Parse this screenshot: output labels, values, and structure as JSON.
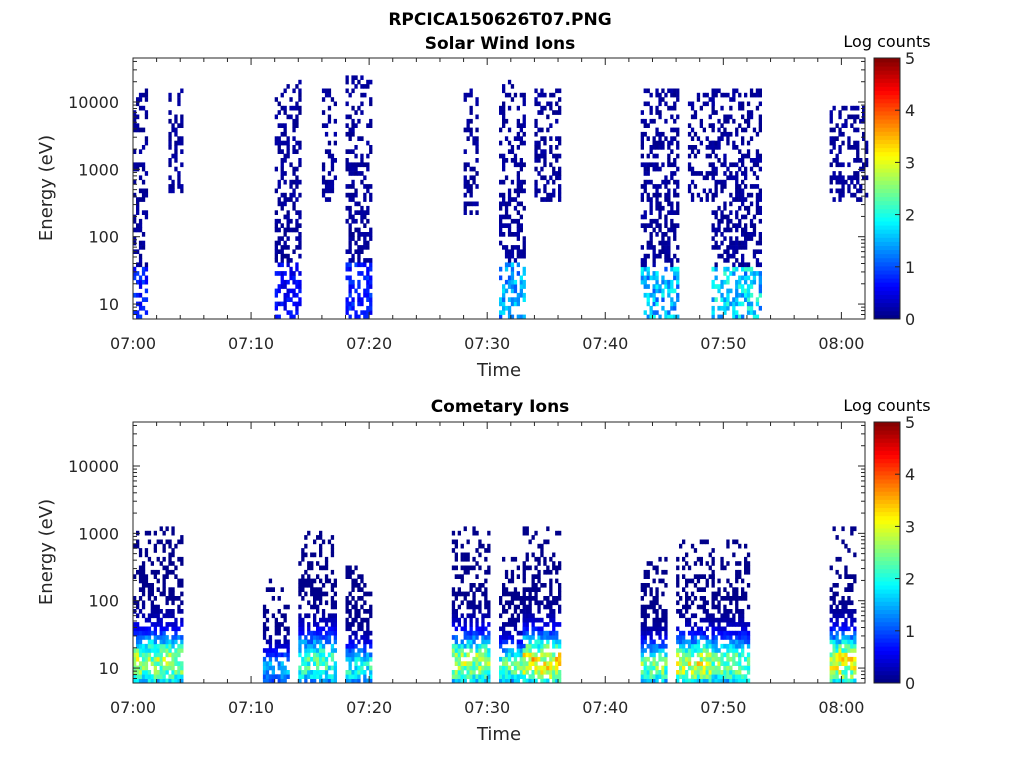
{
  "figure_title": "RPCICA150626T07.PNG",
  "colorbar": {
    "label": "Log counts",
    "ticks": [
      "0",
      "1",
      "2",
      "3",
      "4",
      "5"
    ],
    "range": [
      0,
      5
    ],
    "colormap": "jet"
  },
  "chart_data": [
    {
      "type": "heatmap",
      "title": "Solar Wind Ions",
      "xlabel": "Time",
      "ylabel": "Energy (eV)",
      "xlim_minutes": [
        0,
        62
      ],
      "yscale": "log",
      "ylim": [
        6,
        45000
      ],
      "x_ticks": [
        "07:00",
        "07:10",
        "07:20",
        "07:30",
        "07:40",
        "07:50",
        "08:00"
      ],
      "y_ticks": [
        "10",
        "100",
        "1000",
        "10000"
      ],
      "bursts": [
        {
          "start": "07:00",
          "end": "07:01",
          "emin": 6,
          "emax": 15000,
          "peak_log_counts": 1.0
        },
        {
          "start": "07:03",
          "end": "07:04",
          "emin": 400,
          "emax": 15000,
          "peak_log_counts": 0.5
        },
        {
          "start": "07:12",
          "end": "07:14",
          "emin": 6,
          "emax": 20000,
          "peak_log_counts": 0.8
        },
        {
          "start": "07:16",
          "end": "07:17",
          "emin": 300,
          "emax": 15000,
          "peak_log_counts": 0.4
        },
        {
          "start": "07:18",
          "end": "07:20",
          "emin": 6,
          "emax": 22000,
          "peak_log_counts": 1.0
        },
        {
          "start": "07:28",
          "end": "07:29",
          "emin": 200,
          "emax": 15000,
          "peak_log_counts": 0.4
        },
        {
          "start": "07:31",
          "end": "07:33",
          "emin": 6,
          "emax": 20000,
          "peak_log_counts": 1.8
        },
        {
          "start": "07:34",
          "end": "07:36",
          "emin": 300,
          "emax": 15000,
          "peak_log_counts": 0.4
        },
        {
          "start": "07:43",
          "end": "07:46",
          "emin": 6,
          "emax": 15000,
          "peak_log_counts": 2.0
        },
        {
          "start": "07:47",
          "end": "07:49",
          "emin": 300,
          "emax": 12000,
          "peak_log_counts": 0.5
        },
        {
          "start": "07:49",
          "end": "07:53",
          "emin": 6,
          "emax": 15000,
          "peak_log_counts": 2.2
        },
        {
          "start": "07:59",
          "end": "08:02",
          "emin": 300,
          "emax": 8000,
          "peak_log_counts": 0.4
        }
      ]
    },
    {
      "type": "heatmap",
      "title": "Cometary Ions",
      "xlabel": "Time",
      "ylabel": "Energy (eV)",
      "xlim_minutes": [
        0,
        62
      ],
      "yscale": "log",
      "ylim": [
        6,
        45000
      ],
      "x_ticks": [
        "07:00",
        "07:10",
        "07:20",
        "07:30",
        "07:40",
        "07:50",
        "08:00"
      ],
      "y_ticks": [
        "10",
        "100",
        "1000",
        "10000"
      ],
      "bursts": [
        {
          "start": "07:00",
          "end": "07:04",
          "emin": 6,
          "emax": 1200,
          "peak_log_counts": 3.2
        },
        {
          "start": "07:11",
          "end": "07:13",
          "emin": 6,
          "emax": 200,
          "peak_log_counts": 1.8
        },
        {
          "start": "07:14",
          "end": "07:17",
          "emin": 6,
          "emax": 1200,
          "peak_log_counts": 2.6
        },
        {
          "start": "07:18",
          "end": "07:20",
          "emin": 6,
          "emax": 300,
          "peak_log_counts": 2.4
        },
        {
          "start": "07:27",
          "end": "07:30",
          "emin": 6,
          "emax": 1100,
          "peak_log_counts": 3.2
        },
        {
          "start": "07:31",
          "end": "07:33",
          "emin": 6,
          "emax": 400,
          "peak_log_counts": 2.8
        },
        {
          "start": "07:33",
          "end": "07:36",
          "emin": 6,
          "emax": 1100,
          "peak_log_counts": 3.8
        },
        {
          "start": "07:43",
          "end": "07:45",
          "emin": 6,
          "emax": 400,
          "peak_log_counts": 3.0
        },
        {
          "start": "07:46",
          "end": "07:49",
          "emin": 6,
          "emax": 700,
          "peak_log_counts": 3.6
        },
        {
          "start": "07:49",
          "end": "07:52",
          "emin": 6,
          "emax": 800,
          "peak_log_counts": 3.0
        },
        {
          "start": "07:59",
          "end": "08:01",
          "emin": 6,
          "emax": 1100,
          "peak_log_counts": 3.6
        }
      ]
    }
  ]
}
